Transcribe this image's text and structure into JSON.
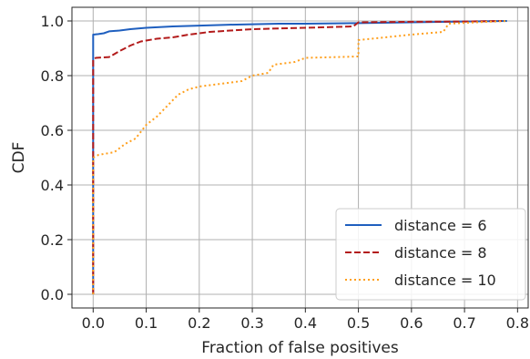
{
  "chart_data": {
    "type": "line",
    "title": "",
    "xlabel": "Fraction of false positives",
    "ylabel": "CDF",
    "xlim": [
      -0.04,
      0.82
    ],
    "ylim": [
      -0.05,
      1.05
    ],
    "xticks": [
      0.0,
      0.1,
      0.2,
      0.3,
      0.4,
      0.5,
      0.6,
      0.7,
      0.8
    ],
    "xtick_labels": [
      "0.0",
      "0.1",
      "0.2",
      "0.3",
      "0.4",
      "0.5",
      "0.6",
      "0.7",
      "0.8"
    ],
    "yticks": [
      0.0,
      0.2,
      0.4,
      0.6,
      0.8,
      1.0
    ],
    "ytick_labels": [
      "0.0",
      "0.2",
      "0.4",
      "0.6",
      "0.8",
      "1.0"
    ],
    "grid": true,
    "legend_position": "bottom-right",
    "series": [
      {
        "name": "distance = 6",
        "color": "#1f5fbf",
        "style": "solid",
        "points": [
          [
            0.0,
            0.0
          ],
          [
            0.0,
            0.95
          ],
          [
            0.01,
            0.952
          ],
          [
            0.02,
            0.955
          ],
          [
            0.03,
            0.962
          ],
          [
            0.05,
            0.965
          ],
          [
            0.07,
            0.97
          ],
          [
            0.1,
            0.975
          ],
          [
            0.15,
            0.98
          ],
          [
            0.2,
            0.983
          ],
          [
            0.25,
            0.986
          ],
          [
            0.3,
            0.988
          ],
          [
            0.35,
            0.99
          ],
          [
            0.4,
            0.99
          ],
          [
            0.5,
            0.992
          ],
          [
            0.6,
            0.995
          ],
          [
            0.7,
            0.998
          ],
          [
            0.78,
            1.0
          ]
        ]
      },
      {
        "name": "distance = 8",
        "color": "#b31b1b",
        "style": "dashed",
        "points": [
          [
            0.0,
            0.0
          ],
          [
            0.0,
            0.86
          ],
          [
            0.005,
            0.865
          ],
          [
            0.03,
            0.868
          ],
          [
            0.05,
            0.89
          ],
          [
            0.07,
            0.91
          ],
          [
            0.09,
            0.925
          ],
          [
            0.12,
            0.935
          ],
          [
            0.15,
            0.94
          ],
          [
            0.18,
            0.95
          ],
          [
            0.22,
            0.96
          ],
          [
            0.3,
            0.97
          ],
          [
            0.4,
            0.975
          ],
          [
            0.49,
            0.98
          ],
          [
            0.5,
            0.995
          ],
          [
            0.6,
            0.997
          ],
          [
            0.7,
            0.998
          ],
          [
            0.77,
            1.0
          ]
        ]
      },
      {
        "name": "distance = 10",
        "color": "#ff9f1c",
        "style": "dotted",
        "points": [
          [
            0.0,
            0.0
          ],
          [
            0.0,
            0.5
          ],
          [
            0.01,
            0.51
          ],
          [
            0.04,
            0.52
          ],
          [
            0.06,
            0.55
          ],
          [
            0.08,
            0.57
          ],
          [
            0.1,
            0.62
          ],
          [
            0.12,
            0.65
          ],
          [
            0.14,
            0.69
          ],
          [
            0.16,
            0.73
          ],
          [
            0.18,
            0.75
          ],
          [
            0.2,
            0.76
          ],
          [
            0.24,
            0.77
          ],
          [
            0.28,
            0.78
          ],
          [
            0.3,
            0.8
          ],
          [
            0.33,
            0.81
          ],
          [
            0.34,
            0.84
          ],
          [
            0.38,
            0.85
          ],
          [
            0.4,
            0.865
          ],
          [
            0.5,
            0.87
          ],
          [
            0.5,
            0.93
          ],
          [
            0.55,
            0.94
          ],
          [
            0.6,
            0.95
          ],
          [
            0.66,
            0.96
          ],
          [
            0.67,
            0.99
          ],
          [
            0.72,
            0.995
          ],
          [
            0.78,
            1.0
          ]
        ]
      }
    ]
  }
}
